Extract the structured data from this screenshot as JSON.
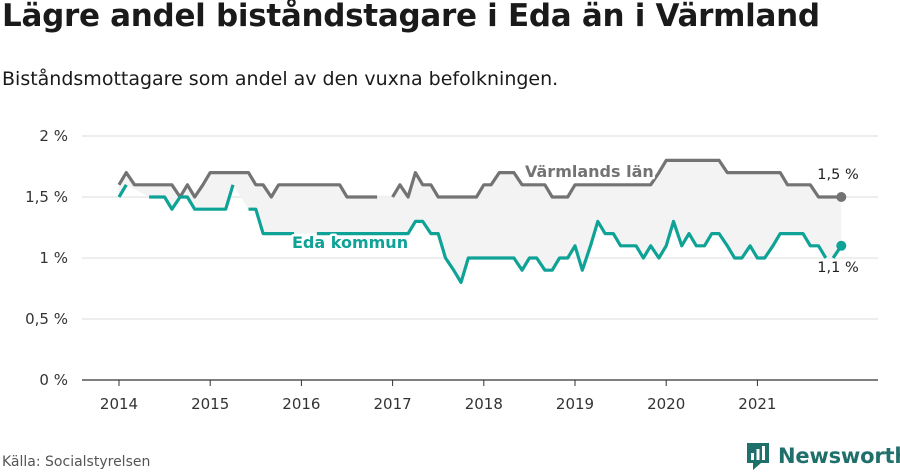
{
  "title": "Lägre andel biståndstagare i Eda än i Värmland",
  "subtitle": "Biståndsmottagare som andel av den vuxna befolkningen.",
  "source": "Källa: Socialstyrelsen",
  "brand": "Newsworthy",
  "colors": {
    "varmland": "#737373",
    "eda": "#0fa296",
    "band": "#f3f3f3",
    "grid": "#dddddd",
    "brand": "#1f6f6b"
  },
  "chart_data": {
    "type": "line",
    "title": "Lägre andel biståndstagare i Eda än i Värmland",
    "subtitle": "Biståndsmottagare som andel av den vuxna befolkningen.",
    "xlabel": "",
    "ylabel": "",
    "ylim": [
      0,
      2
    ],
    "xlim": [
      2013.75,
      2022.2
    ],
    "y_ticks": [
      0,
      0.5,
      1,
      1.5,
      2
    ],
    "y_tick_labels": [
      "0 %",
      "0,5 %",
      "1 %",
      "1,5 %",
      "2 %"
    ],
    "x_ticks": [
      2014,
      2015,
      2016,
      2017,
      2018,
      2019,
      2020,
      2021
    ],
    "x_tick_labels": [
      "2014",
      "2015",
      "2016",
      "2017",
      "2018",
      "2019",
      "2020",
      "2021"
    ],
    "grid": true,
    "series": [
      {
        "name": "Värmlands län",
        "end_label": "1,5 %",
        "segments": [
          [
            [
              2014.0,
              1.6
            ],
            [
              2014.08,
              1.7
            ],
            [
              2014.17,
              1.6
            ],
            [
              2014.25,
              1.6
            ],
            [
              2014.33,
              1.6
            ],
            [
              2014.42,
              1.6
            ],
            [
              2014.5,
              1.6
            ],
            [
              2014.58,
              1.6
            ],
            [
              2014.67,
              1.5
            ],
            [
              2014.75,
              1.6
            ],
            [
              2014.83,
              1.5
            ],
            [
              2014.92,
              1.6
            ],
            [
              2015.0,
              1.7
            ],
            [
              2015.08,
              1.7
            ],
            [
              2015.17,
              1.7
            ],
            [
              2015.25,
              1.7
            ],
            [
              2015.33,
              1.7
            ],
            [
              2015.42,
              1.7
            ],
            [
              2015.5,
              1.6
            ],
            [
              2015.58,
              1.6
            ],
            [
              2015.67,
              1.5
            ],
            [
              2015.75,
              1.6
            ],
            [
              2015.83,
              1.6
            ],
            [
              2015.92,
              1.6
            ],
            [
              2016.0,
              1.6
            ],
            [
              2016.08,
              1.6
            ],
            [
              2016.17,
              1.6
            ],
            [
              2016.25,
              1.6
            ],
            [
              2016.33,
              1.6
            ],
            [
              2016.42,
              1.6
            ],
            [
              2016.5,
              1.5
            ],
            [
              2016.58,
              1.5
            ],
            [
              2016.67,
              1.5
            ],
            [
              2016.75,
              1.5
            ],
            [
              2016.83,
              1.5
            ]
          ],
          [
            [
              2017.0,
              1.5
            ],
            [
              2017.08,
              1.6
            ],
            [
              2017.17,
              1.5
            ],
            [
              2017.25,
              1.7
            ],
            [
              2017.33,
              1.6
            ],
            [
              2017.42,
              1.6
            ],
            [
              2017.5,
              1.5
            ],
            [
              2017.58,
              1.5
            ],
            [
              2017.67,
              1.5
            ],
            [
              2017.75,
              1.5
            ],
            [
              2017.83,
              1.5
            ],
            [
              2017.92,
              1.5
            ],
            [
              2018.0,
              1.6
            ],
            [
              2018.08,
              1.6
            ],
            [
              2018.17,
              1.7
            ],
            [
              2018.25,
              1.7
            ],
            [
              2018.33,
              1.7
            ],
            [
              2018.42,
              1.6
            ],
            [
              2018.5,
              1.6
            ],
            [
              2018.58,
              1.6
            ],
            [
              2018.67,
              1.6
            ],
            [
              2018.75,
              1.5
            ],
            [
              2018.83,
              1.5
            ],
            [
              2018.92,
              1.5
            ],
            [
              2019.0,
              1.6
            ],
            [
              2019.08,
              1.6
            ],
            [
              2019.17,
              1.6
            ],
            [
              2019.25,
              1.6
            ],
            [
              2019.33,
              1.6
            ],
            [
              2019.42,
              1.6
            ],
            [
              2019.5,
              1.6
            ],
            [
              2019.58,
              1.6
            ],
            [
              2019.67,
              1.6
            ],
            [
              2019.75,
              1.6
            ],
            [
              2019.83,
              1.6
            ],
            [
              2019.92,
              1.7
            ],
            [
              2020.0,
              1.8
            ],
            [
              2020.08,
              1.8
            ],
            [
              2020.17,
              1.8
            ],
            [
              2020.25,
              1.8
            ],
            [
              2020.33,
              1.8
            ],
            [
              2020.42,
              1.8
            ],
            [
              2020.5,
              1.8
            ],
            [
              2020.58,
              1.8
            ],
            [
              2020.67,
              1.7
            ],
            [
              2020.75,
              1.7
            ],
            [
              2020.83,
              1.7
            ],
            [
              2020.92,
              1.7
            ],
            [
              2021.0,
              1.7
            ],
            [
              2021.08,
              1.7
            ],
            [
              2021.17,
              1.7
            ],
            [
              2021.25,
              1.7
            ],
            [
              2021.33,
              1.6
            ],
            [
              2021.42,
              1.6
            ],
            [
              2021.5,
              1.6
            ],
            [
              2021.58,
              1.6
            ],
            [
              2021.67,
              1.5
            ],
            [
              2021.75,
              1.5
            ],
            [
              2021.83,
              1.5
            ],
            [
              2021.92,
              1.5
            ]
          ]
        ]
      },
      {
        "name": "Eda kommun",
        "end_label": "1,1 %",
        "segments": [
          [
            [
              2014.0,
              1.5
            ],
            [
              2014.08,
              1.6
            ]
          ],
          [
            [
              2014.33,
              1.5
            ],
            [
              2014.42,
              1.5
            ],
            [
              2014.5,
              1.5
            ],
            [
              2014.58,
              1.4
            ],
            [
              2014.67,
              1.5
            ],
            [
              2014.75,
              1.5
            ],
            [
              2014.83,
              1.4
            ],
            [
              2014.92,
              1.4
            ],
            [
              2015.0,
              1.4
            ],
            [
              2015.08,
              1.4
            ],
            [
              2015.17,
              1.4
            ],
            [
              2015.25,
              1.6
            ]
          ],
          [
            [
              2015.42,
              1.4
            ],
            [
              2015.5,
              1.4
            ],
            [
              2015.58,
              1.2
            ],
            [
              2015.67,
              1.2
            ],
            [
              2015.75,
              1.2
            ],
            [
              2015.83,
              1.2
            ],
            [
              2015.92,
              1.2
            ]
          ],
          [
            [
              2016.17,
              1.2
            ],
            [
              2016.25,
              1.2
            ],
            [
              2016.33,
              1.2
            ],
            [
              2016.42,
              1.2
            ],
            [
              2016.5,
              1.2
            ],
            [
              2016.58,
              1.2
            ],
            [
              2016.67,
              1.2
            ],
            [
              2016.75,
              1.2
            ],
            [
              2016.83,
              1.2
            ],
            [
              2016.92,
              1.2
            ],
            [
              2017.0,
              1.2
            ],
            [
              2017.08,
              1.2
            ],
            [
              2017.17,
              1.2
            ],
            [
              2017.25,
              1.3
            ],
            [
              2017.33,
              1.3
            ],
            [
              2017.42,
              1.2
            ],
            [
              2017.5,
              1.2
            ],
            [
              2017.58,
              1.0
            ],
            [
              2017.67,
              0.9
            ],
            [
              2017.75,
              0.8
            ],
            [
              2017.83,
              1.0
            ],
            [
              2017.92,
              1.0
            ],
            [
              2018.0,
              1.0
            ],
            [
              2018.08,
              1.0
            ],
            [
              2018.17,
              1.0
            ],
            [
              2018.25,
              1.0
            ],
            [
              2018.33,
              1.0
            ],
            [
              2018.42,
              0.9
            ],
            [
              2018.5,
              1.0
            ],
            [
              2018.58,
              1.0
            ],
            [
              2018.67,
              0.9
            ],
            [
              2018.75,
              0.9
            ],
            [
              2018.83,
              1.0
            ],
            [
              2018.92,
              1.0
            ],
            [
              2019.0,
              1.1
            ],
            [
              2019.08,
              0.9
            ],
            [
              2019.17,
              1.1
            ],
            [
              2019.25,
              1.3
            ],
            [
              2019.33,
              1.2
            ],
            [
              2019.42,
              1.2
            ],
            [
              2019.5,
              1.1
            ],
            [
              2019.58,
              1.1
            ],
            [
              2019.67,
              1.1
            ],
            [
              2019.75,
              1.0
            ],
            [
              2019.83,
              1.1
            ],
            [
              2019.92,
              1.0
            ],
            [
              2020.0,
              1.1
            ],
            [
              2020.08,
              1.3
            ],
            [
              2020.17,
              1.1
            ],
            [
              2020.25,
              1.2
            ],
            [
              2020.33,
              1.1
            ],
            [
              2020.42,
              1.1
            ],
            [
              2020.5,
              1.2
            ],
            [
              2020.58,
              1.2
            ],
            [
              2020.67,
              1.1
            ],
            [
              2020.75,
              1.0
            ],
            [
              2020.83,
              1.0
            ],
            [
              2020.92,
              1.1
            ],
            [
              2021.0,
              1.0
            ],
            [
              2021.08,
              1.0
            ],
            [
              2021.17,
              1.1
            ],
            [
              2021.25,
              1.2
            ],
            [
              2021.33,
              1.2
            ],
            [
              2021.42,
              1.2
            ],
            [
              2021.5,
              1.2
            ],
            [
              2021.58,
              1.1
            ],
            [
              2021.67,
              1.1
            ],
            [
              2021.75,
              1.0
            ]
          ],
          [
            [
              2021.83,
              1.0
            ],
            [
              2021.92,
              1.1
            ]
          ]
        ]
      }
    ]
  }
}
